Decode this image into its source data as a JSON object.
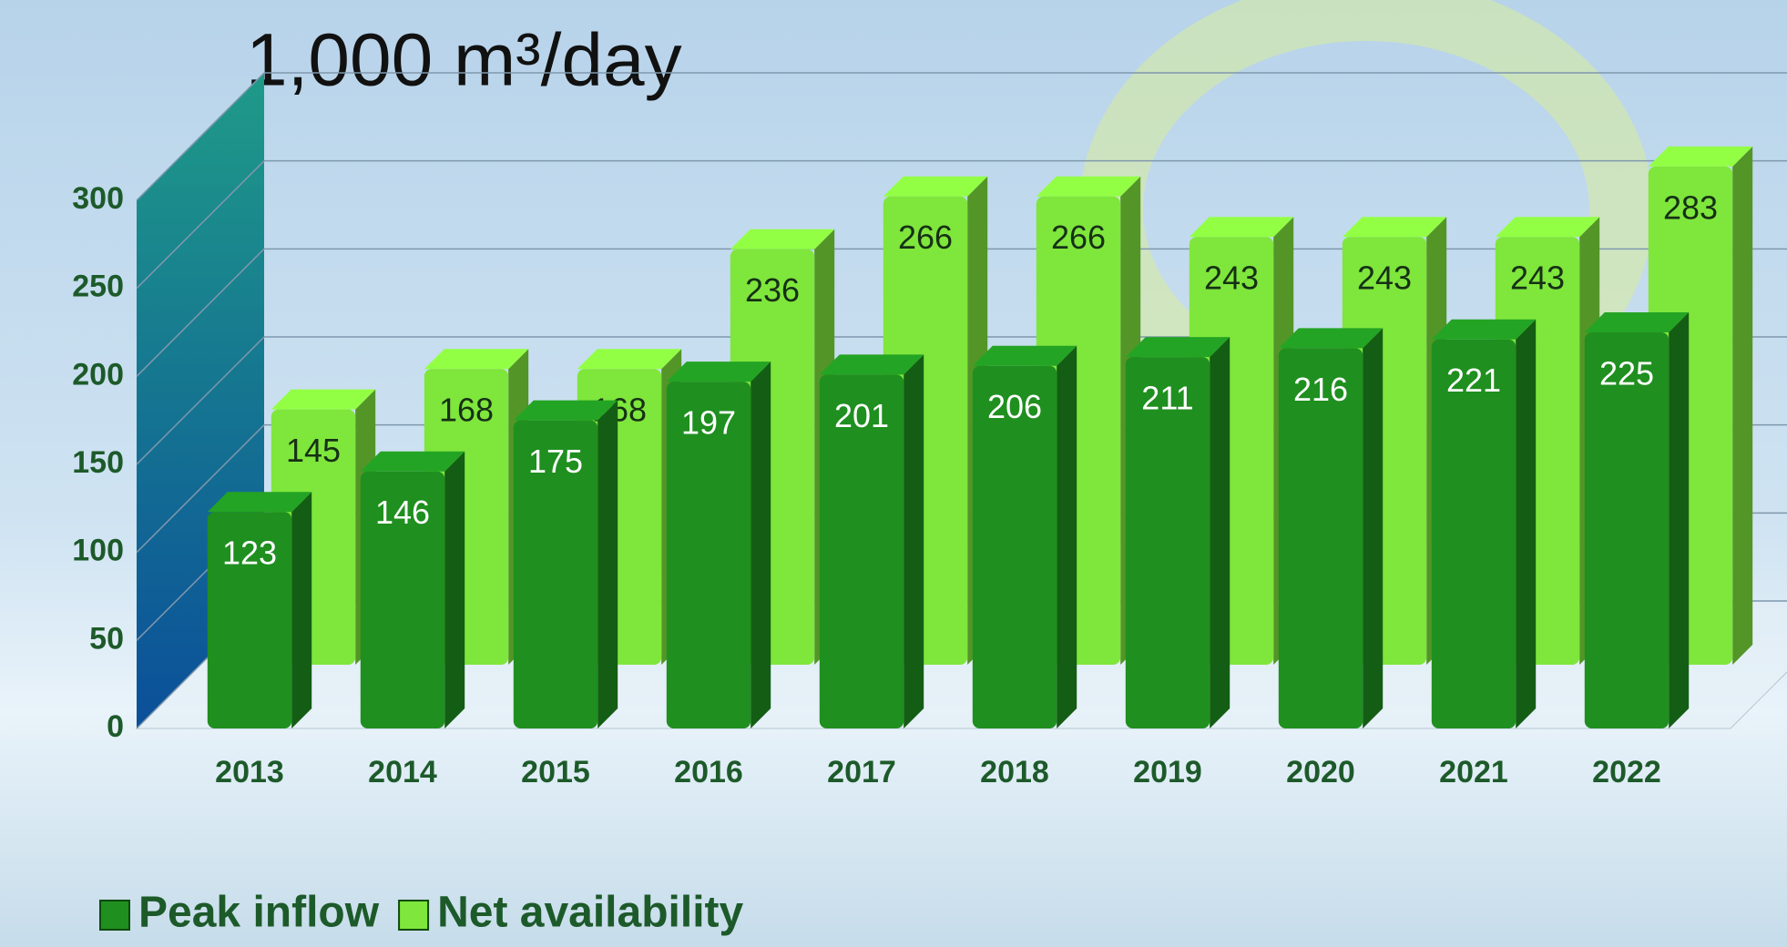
{
  "chart_data": {
    "type": "bar3d",
    "title": "1,000 m³/day",
    "categories": [
      "2013",
      "2014",
      "2015",
      "2016",
      "2017",
      "2018",
      "2019",
      "2020",
      "2021",
      "2022"
    ],
    "series": [
      {
        "name": "Peak inflow",
        "color": "#1f8f1f",
        "values": [
          123,
          146,
          175,
          197,
          201,
          206,
          211,
          216,
          221,
          225
        ]
      },
      {
        "name": "Net availability",
        "color": "#7fe63c",
        "values": [
          145,
          168,
          168,
          236,
          266,
          266,
          243,
          243,
          243,
          283
        ]
      }
    ],
    "ylim": [
      0,
      300
    ],
    "yticks": [
      0,
      50,
      100,
      150,
      200,
      250,
      300
    ],
    "grid": true,
    "legend": "bottom-left"
  }
}
